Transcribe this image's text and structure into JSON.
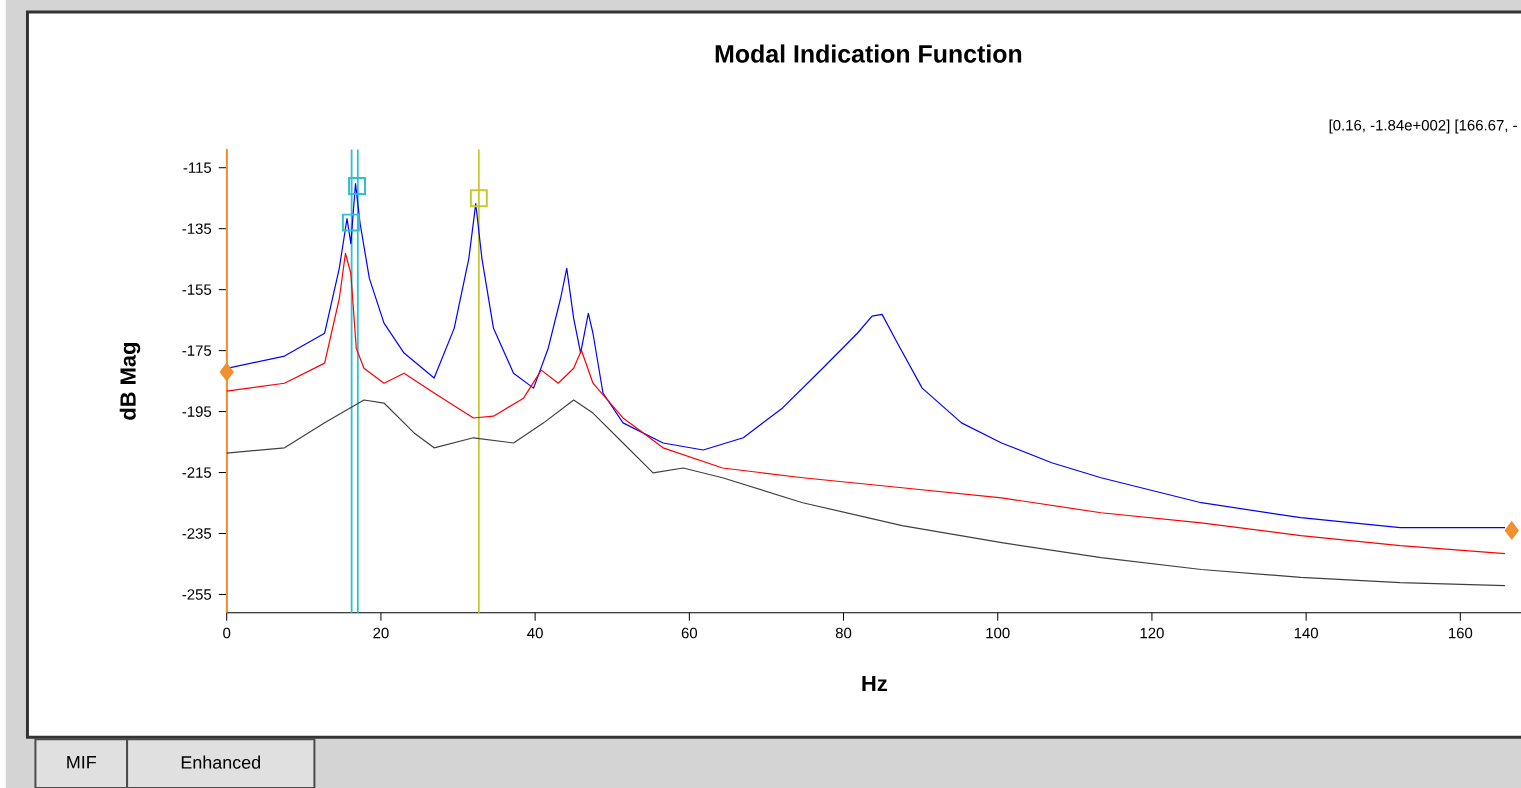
{
  "chart_data": {
    "type": "line",
    "title": "Modal Indication Function",
    "xlabel": "Hz",
    "ylabel": "dB Mag",
    "annotations": [
      "[0.16, -1.84e+002] [166.67, -",
      "MIF",
      "Enhanced"
    ],
    "xlim": [
      0,
      168
    ],
    "xticks": [
      0,
      20,
      40,
      60,
      80,
      100,
      120,
      140,
      160
    ],
    "ylim": [
      -261,
      -109
    ],
    "yticks": [
      -115,
      -135,
      -155,
      -175,
      -195,
      -215,
      -235,
      -255
    ],
    "grid": false,
    "marker": "none",
    "line_style": "solid",
    "ref_lines": [
      {
        "axis": "x",
        "value": 0,
        "color": "#f09030"
      },
      {
        "axis": "x",
        "value": 16.2,
        "color": "#30c0d0"
      },
      {
        "axis": "x",
        "value": 17.0,
        "color": "#30c0d0"
      },
      {
        "axis": "x",
        "value": 32.7,
        "color": "#c8c830"
      }
    ],
    "series": [
      {
        "color": "#0000ff",
        "x": [
          0,
          7.5,
          12.7,
          14.6,
          15.6,
          16.1,
          16.7,
          17.3,
          18.5,
          20.4,
          23,
          26.9,
          29.5,
          31.4,
          32.3,
          33.1,
          34.6,
          37.2,
          39.8,
          41.7,
          43.3,
          44.1,
          45,
          45.9,
          46.9,
          47.5,
          48.8,
          51.4,
          56.6,
          61.8,
          67,
          72.1,
          77.3,
          81.8,
          83.7,
          85,
          87,
          90.2,
          95.3,
          100.5,
          107,
          113.4,
          126.4,
          139.3,
          152.2,
          165.8
        ],
        "values": [
          -180.8,
          -176.8,
          -169.3,
          -148,
          -131.7,
          -139.9,
          -120.2,
          -133.3,
          -151.3,
          -166,
          -175.8,
          -184,
          -167.7,
          -144.8,
          -126.8,
          -144.8,
          -167.7,
          -182.4,
          -187.3,
          -174.2,
          -157.9,
          -148,
          -164.4,
          -175.8,
          -162.8,
          -169.3,
          -188.9,
          -198.7,
          -205.3,
          -207.6,
          -203.6,
          -193.8,
          -180.8,
          -169.3,
          -163.7,
          -163.1,
          -172.6,
          -187.3,
          -198.7,
          -205.3,
          -211.8,
          -216.7,
          -224.9,
          -229.8,
          -233.1,
          -233.1
        ]
      },
      {
        "color": "#ff0000",
        "x": [
          0,
          7.5,
          12.7,
          14.6,
          15.4,
          16.1,
          16.8,
          17.8,
          20.4,
          23,
          26.9,
          32,
          34.6,
          38.5,
          40.8,
          43,
          45,
          46,
          47.5,
          51.4,
          56.6,
          64.3,
          74.7,
          87.6,
          100.5,
          113.4,
          126.4,
          139.3,
          152.2,
          165.8
        ],
        "values": [
          -188.3,
          -185.7,
          -179.1,
          -157.9,
          -143.1,
          -149.7,
          -174.2,
          -180.8,
          -185.7,
          -182.4,
          -188.9,
          -197.1,
          -196.5,
          -190.6,
          -181.4,
          -185.7,
          -180.8,
          -174.9,
          -185.7,
          -197.1,
          -206.9,
          -213.5,
          -216.7,
          -220,
          -223.3,
          -228.2,
          -231.5,
          -235.7,
          -239,
          -241.6
        ]
      },
      {
        "color": "#404040",
        "x": [
          0,
          7.5,
          12.7,
          17.8,
          20.4,
          24.3,
          26.9,
          32,
          37.2,
          41.1,
          45,
          47.5,
          51.4,
          55.3,
          59.2,
          64.3,
          74.7,
          87.6,
          100.5,
          113.4,
          126.4,
          139.3,
          152.2,
          165.8
        ],
        "values": [
          -208.6,
          -206.9,
          -198.7,
          -191.2,
          -192.2,
          -202,
          -206.9,
          -203.6,
          -205.3,
          -198.7,
          -191.2,
          -195.5,
          -205.3,
          -215.1,
          -213.5,
          -216.7,
          -224.9,
          -232.4,
          -238,
          -242.9,
          -246.8,
          -249.4,
          -251.1,
          -252.1
        ]
      },
      {
        "type": "scatter",
        "marker": "square",
        "x": [
          16.1,
          16.9,
          32.7
        ],
        "values": [
          -133,
          -121,
          -125
        ],
        "colors": [
          "#30c0d0",
          "#30c0d0",
          "#c8c830"
        ]
      },
      {
        "type": "scatter",
        "marker": "diamond",
        "x": [
          0,
          166.67
        ],
        "values": [
          -182,
          -234
        ],
        "colors": [
          "#f09030",
          "#f09030"
        ]
      }
    ]
  }
}
